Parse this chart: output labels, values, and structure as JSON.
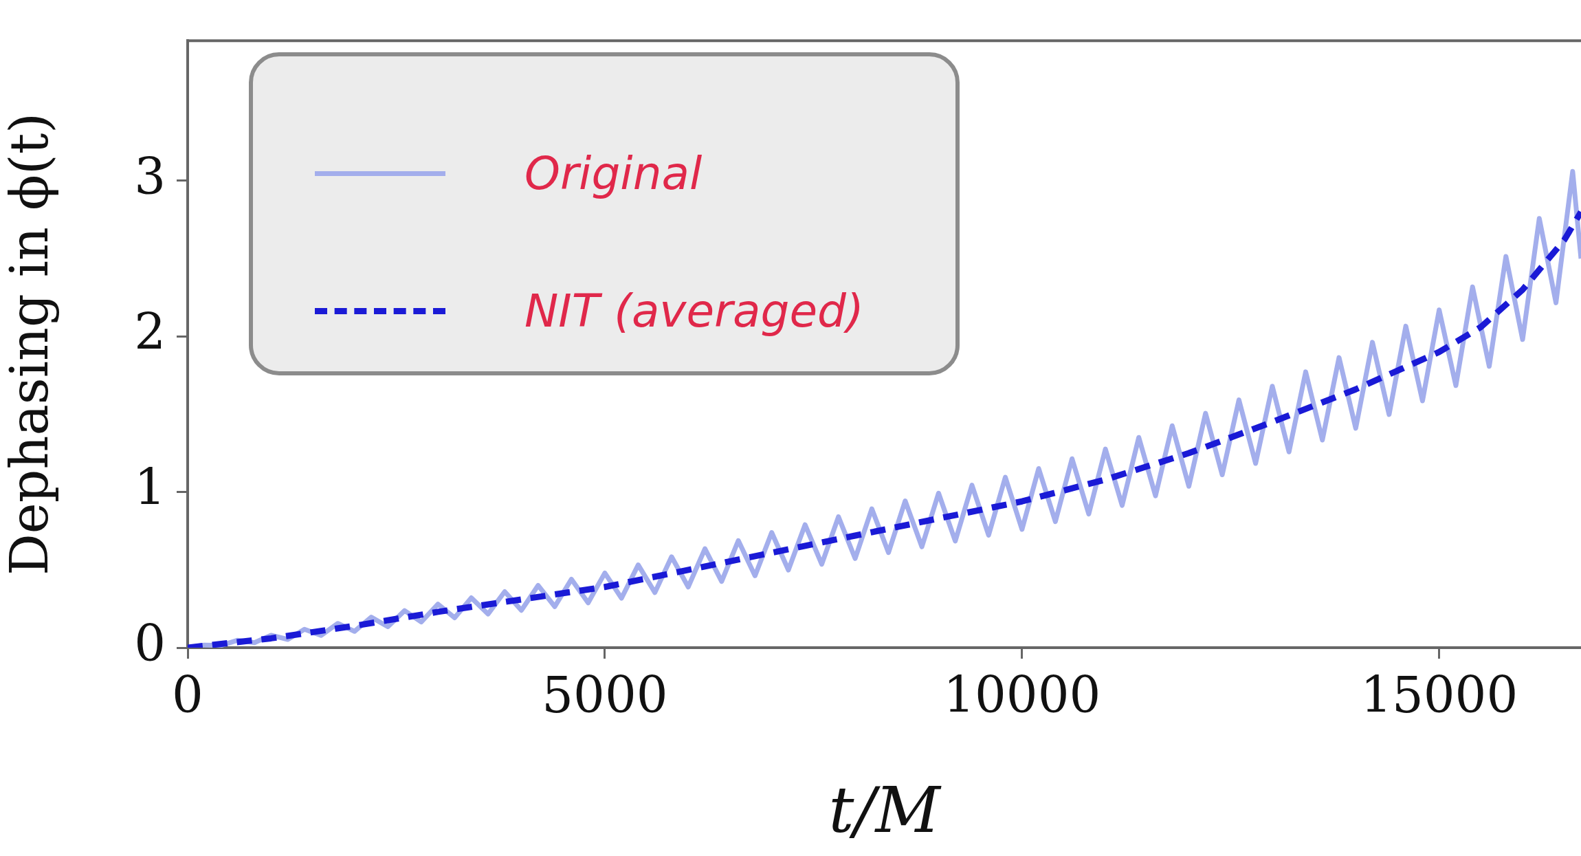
{
  "chart_data": {
    "type": "line",
    "xlabel": "t/M",
    "ylabel": "Dephasing in ϕ(t)",
    "xlim": [
      0,
      16700
    ],
    "xticks": [
      0,
      5000,
      10000,
      15000
    ],
    "ylim": [
      0,
      3.9
    ],
    "yticks": [
      0,
      1,
      2,
      3
    ],
    "legend": "top left",
    "marker": "none",
    "series": [
      {
        "name": "Original",
        "color": "#a3aeec",
        "line_style": "solid",
        "x": [
          0,
          200,
          400,
          600,
          800,
          1000,
          1200,
          1400,
          1600,
          1800,
          2000,
          2200,
          2400,
          2600,
          2800,
          3000,
          3200,
          3400,
          3600,
          3800,
          4000,
          4200,
          4400,
          4600,
          4800,
          5000,
          5200,
          5400,
          5600,
          5800,
          6000,
          6200,
          6400,
          6600,
          6800,
          7000,
          7200,
          7400,
          7600,
          7800,
          8000,
          8200,
          8400,
          8600,
          8800,
          9000,
          9200,
          9400,
          9600,
          9800,
          10000,
          10200,
          10400,
          10600,
          10800,
          11000,
          11200,
          11400,
          11600,
          11800,
          12000,
          12200,
          12400,
          12600,
          12800,
          13000,
          13200,
          13400,
          13600,
          13800,
          14000,
          14200,
          14400,
          14600,
          14800,
          15000,
          15200,
          15400,
          15600,
          15800,
          16000,
          16200,
          16400,
          16600,
          16700
        ],
        "values": [
          0,
          0.017,
          0.014,
          0.048,
          0.032,
          0.08,
          0.053,
          0.118,
          0.079,
          0.156,
          0.105,
          0.196,
          0.135,
          0.238,
          0.165,
          0.28,
          0.192,
          0.32,
          0.216,
          0.36,
          0.24,
          0.4,
          0.264,
          0.44,
          0.288,
          0.48,
          0.318,
          0.532,
          0.354,
          0.584,
          0.39,
          0.636,
          0.426,
          0.688,
          0.462,
          0.74,
          0.499,
          0.79,
          0.536,
          0.841,
          0.573,
          0.892,
          0.611,
          0.943,
          0.648,
          0.993,
          0.685,
          1.044,
          0.723,
          1.095,
          0.76,
          1.151,
          0.81,
          1.214,
          0.859,
          1.276,
          0.914,
          1.351,
          0.976,
          1.426,
          1.037,
          1.506,
          1.111,
          1.592,
          1.184,
          1.68,
          1.258,
          1.772,
          1.334,
          1.864,
          1.41,
          1.962,
          1.498,
          2.066,
          1.586,
          2.17,
          1.684,
          2.318,
          1.808,
          2.514,
          1.98,
          2.758,
          2.216,
          3.06,
          2.5
        ]
      },
      {
        "name": "NIT (averaged)",
        "color": "#1a1ad6",
        "line_style": "dashed",
        "x": [
          0,
          1000,
          2000,
          3000,
          4000,
          5000,
          6000,
          7000,
          8000,
          9000,
          10000,
          11000,
          12000,
          13000,
          14000,
          15000,
          15500,
          16000,
          16500,
          16700
        ],
        "values": [
          0,
          0.06,
          0.14,
          0.23,
          0.31,
          0.39,
          0.5,
          0.61,
          0.72,
          0.83,
          0.94,
          1.08,
          1.25,
          1.45,
          1.66,
          1.9,
          2.06,
          2.3,
          2.62,
          2.8
        ]
      }
    ]
  }
}
